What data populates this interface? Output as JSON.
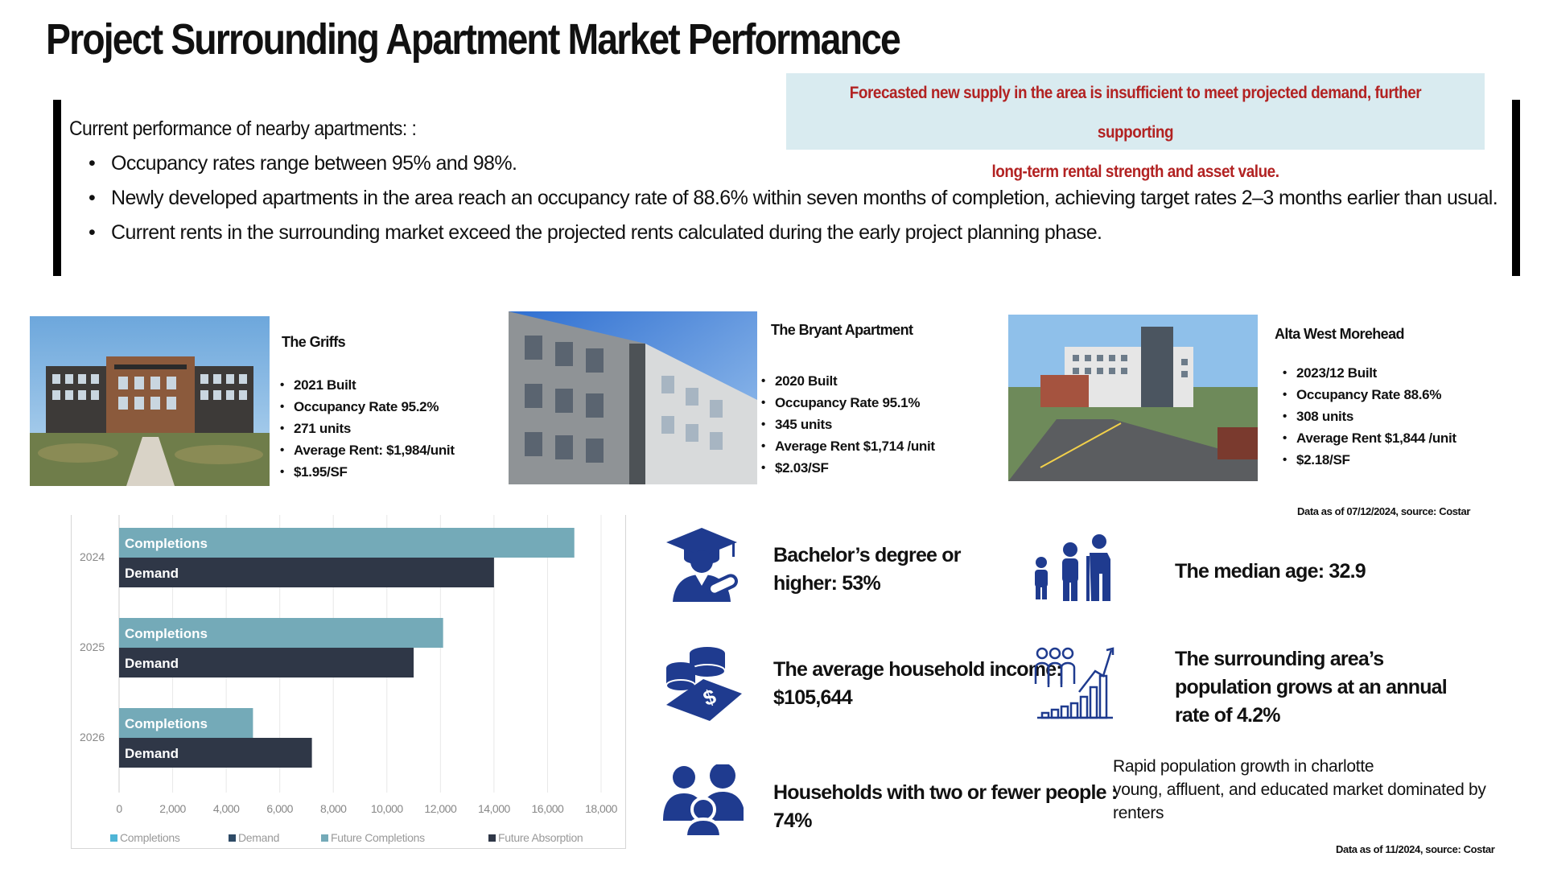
{
  "title": "Project Surrounding Apartment Market Performance",
  "callout": {
    "line1": "Forecasted new supply in the area is insufficient to meet projected demand, further supporting",
    "line2": "long-term rental strength and asset value."
  },
  "performance": {
    "lead": "Current performance of nearby apartments:  :",
    "bullets": [
      "Occupancy rates range between 95% and 98%.",
      "Newly developed apartments in the area reach an occupancy rate of 88.6% within seven months of completion, achieving target rates 2–3 months earlier than usual.",
      "Current rents in the surrounding market exceed the projected rents calculated during the early project planning phase."
    ]
  },
  "properties": [
    {
      "name": "The Griffs",
      "details": [
        "2021 Built",
        "Occupancy Rate 95.2%",
        "271 units",
        "Average Rent: $1,984/unit",
        "$1.95/SF"
      ]
    },
    {
      "name": "The Bryant Apartment",
      "details": [
        "2020 Built",
        "Occupancy Rate 95.1%",
        "345 units",
        "Average Rent $1,714 /unit",
        "$2.03/SF"
      ]
    },
    {
      "name": "Alta West Morehead",
      "details": [
        "2023/12 Built",
        "Occupancy Rate 88.6%",
        "308 units",
        "Average Rent $1,844 /unit",
        "$2.18/SF"
      ]
    }
  ],
  "source_properties": "Data as of 07/12/2024, source: Costar",
  "chart_data": {
    "type": "bar",
    "orientation": "horizontal",
    "categories": [
      "2024",
      "2025",
      "2026"
    ],
    "series": [
      {
        "name": "Completions",
        "values": [
          17000,
          12100,
          5000
        ]
      },
      {
        "name": "Demand",
        "values": [
          14000,
          11000,
          7200
        ]
      }
    ],
    "xlim": [
      0,
      18000
    ],
    "xticks": [
      "0",
      "2,000",
      "4,000",
      "6,000",
      "8,000",
      "10,000",
      "12,000",
      "14,000",
      "16,000",
      "18,000"
    ],
    "bar_labels": [
      "Completions",
      "Demand"
    ],
    "legend": [
      "Completions",
      "Demand",
      "Future Completions",
      "Future Absorption"
    ],
    "legend_position": "bottom",
    "colors": {
      "Completions": "#74aab8",
      "Demand": "#2f3747",
      "Future Completions": "#74aab8",
      "Future Absorption": "#2f3747",
      "legend_completions": "#4fb5d6",
      "legend_demand": "#2e4a66"
    }
  },
  "demographics": {
    "education": {
      "line1": "Bachelor’s degree or",
      "line2": "higher: 53%",
      "icon": "graduate-icon"
    },
    "income": {
      "line1": "The average household income:",
      "line2": "$105,644",
      "icon": "money-icon"
    },
    "households": {
      "line1": "Households with two or fewer people :",
      "line2": "74%",
      "icon": "family-icon"
    },
    "median_age": {
      "text": "The median age: 32.9",
      "icon": "age-group-icon"
    },
    "growth": {
      "line1": "The surrounding area’s",
      "line2": "population grows at an annual",
      "line3": "rate of 4.2%",
      "icon": "population-growth-icon"
    }
  },
  "note": {
    "line1": "Rapid population growth in charlotte",
    "line2": "young, affluent, and educated market dominated by",
    "line3": "renters"
  },
  "source_demographics": "Data as of 11/2024, source: Costar",
  "icon_color": "#1f3b8f"
}
